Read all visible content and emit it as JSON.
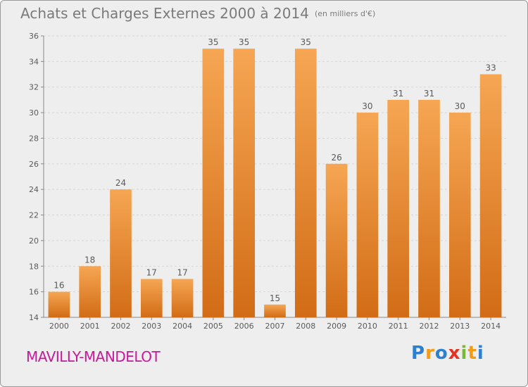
{
  "title": "Achats et Charges Externes 2000 à 2014",
  "unit": "(en milliers d'€)",
  "commune": "MAVILLY-MANDELOT",
  "brand": "Proxiti",
  "colors": {
    "bar_top": "#f6a653",
    "bar_bottom": "#d26c16",
    "axis_text": "#5a5a5a",
    "grid": "#d6d6d6",
    "commune": "#c8189a"
  },
  "chart_data": {
    "type": "bar",
    "categories": [
      "2000",
      "2001",
      "2002",
      "2003",
      "2004",
      "2005",
      "2006",
      "2007",
      "2008",
      "2009",
      "2010",
      "2011",
      "2012",
      "2013",
      "2014"
    ],
    "values": [
      16,
      18,
      24,
      17,
      17,
      35,
      35,
      15,
      35,
      26,
      30,
      31,
      31,
      30,
      33
    ],
    "ylim": [
      14,
      36
    ],
    "yticks": [
      14,
      16,
      18,
      20,
      22,
      24,
      26,
      28,
      30,
      32,
      34,
      36
    ],
    "grid": "dashed horizontal",
    "title": "Achats et Charges Externes 2000 à 2014",
    "xlabel": "",
    "ylabel": ""
  }
}
